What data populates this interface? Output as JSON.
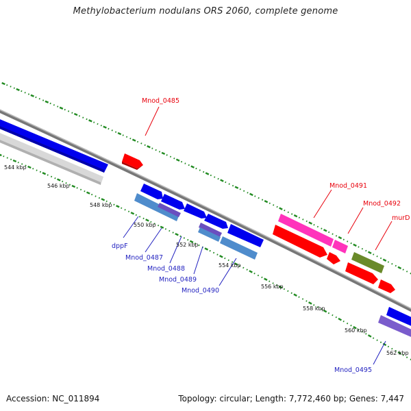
{
  "title": "Methylobacterium nodulans ORS 2060, complete genome",
  "accession": "Accession: NC_011894",
  "topology": "Topology: circular; Length: 7,772,460 bp; Genes: 7,447",
  "kbp_ticks": [
    "544 kbp",
    "546 kbp",
    "548 kbp",
    "550 kbp",
    "552 kbp",
    "554 kbp",
    "556 kbp",
    "558 kbp",
    "560 kbp",
    "562 kbp"
  ],
  "genes": [
    {
      "id": "Mnod_0485",
      "color": "#e8000b"
    },
    {
      "id": "Mnod_0491",
      "color": "#e8000b"
    },
    {
      "id": "Mnod_0492",
      "color": "#e8000b"
    },
    {
      "id": "murD",
      "color": "#e8000b"
    },
    {
      "id": "dppF",
      "color": "#1f1fbf"
    },
    {
      "id": "Mnod_0487",
      "color": "#1f1fbf"
    },
    {
      "id": "Mnod_0488",
      "color": "#1f1fbf"
    },
    {
      "id": "Mnod_0489",
      "color": "#1f1fbf"
    },
    {
      "id": "Mnod_0490",
      "color": "#1f1fbf"
    },
    {
      "id": "Mnod_0495",
      "color": "#1f1fbf"
    }
  ],
  "colors": {
    "cds_forward": "#ff0000",
    "cds_reverse": "#0000ff",
    "rna_pink": "#ff33bb",
    "steelblue": "#4f8ccc",
    "purple": "#7a5ccc",
    "olive": "#6a8a2a",
    "grey": "#cccccc",
    "backbone": "#888888",
    "dots": "#228b22"
  }
}
